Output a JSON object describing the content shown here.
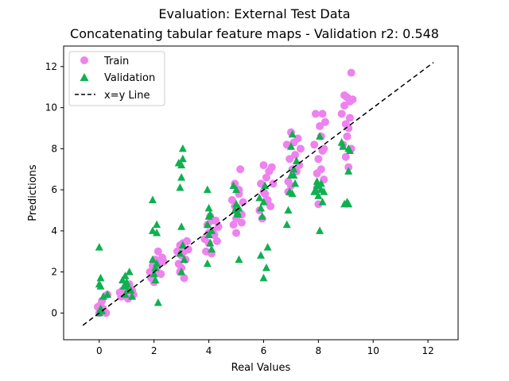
{
  "chart_data": {
    "type": "scatter",
    "title": "Evaluation: External Test Data",
    "subtitle": "Concatenating tabular feature maps - Validation r2: 0.548",
    "xlabel": "Real Values",
    "ylabel": "Predictions",
    "xlim": [
      -1.3,
      13.1
    ],
    "ylim": [
      -1.3,
      13.0
    ],
    "xticks": [
      0,
      2,
      4,
      6,
      8,
      10,
      12
    ],
    "yticks": [
      0,
      2,
      4,
      6,
      8,
      10,
      12
    ],
    "grid": false,
    "legend_position": "top-left",
    "series": [
      {
        "name": "Train",
        "marker": "circle",
        "color": "#ee82ee",
        "points": [
          [
            -0.05,
            0.3
          ],
          [
            0.0,
            0.0
          ],
          [
            0.05,
            0.4
          ],
          [
            0.1,
            0.1
          ],
          [
            0.15,
            0.2
          ],
          [
            0.25,
            0.0
          ],
          [
            0.3,
            0.9
          ],
          [
            0.1,
            0.6
          ],
          [
            0.75,
            1.0
          ],
          [
            0.8,
            0.8
          ],
          [
            0.85,
            1.1
          ],
          [
            0.95,
            0.9
          ],
          [
            1.0,
            1.2
          ],
          [
            1.05,
            0.7
          ],
          [
            1.1,
            1.4
          ],
          [
            1.2,
            1.1
          ],
          [
            1.25,
            0.9
          ],
          [
            1.85,
            2.0
          ],
          [
            1.9,
            1.7
          ],
          [
            1.95,
            2.3
          ],
          [
            2.0,
            1.5
          ],
          [
            2.05,
            2.6
          ],
          [
            2.1,
            2.2
          ],
          [
            2.15,
            3.0
          ],
          [
            2.2,
            2.4
          ],
          [
            2.25,
            1.9
          ],
          [
            2.3,
            2.7
          ],
          [
            2.35,
            2.5
          ],
          [
            2.0,
            1.9
          ],
          [
            2.1,
            2.0
          ],
          [
            2.85,
            3.0
          ],
          [
            2.9,
            2.4
          ],
          [
            2.95,
            3.3
          ],
          [
            3.0,
            2.8
          ],
          [
            3.05,
            3.4
          ],
          [
            3.1,
            1.7
          ],
          [
            3.15,
            2.6
          ],
          [
            3.2,
            3.5
          ],
          [
            3.25,
            3.1
          ],
          [
            3.0,
            2.2
          ],
          [
            3.1,
            3.0
          ],
          [
            2.95,
            2.0
          ],
          [
            3.85,
            3.6
          ],
          [
            3.9,
            3.0
          ],
          [
            3.95,
            4.3
          ],
          [
            4.0,
            3.4
          ],
          [
            4.05,
            4.7
          ],
          [
            4.1,
            2.9
          ],
          [
            4.15,
            4.0
          ],
          [
            4.2,
            3.8
          ],
          [
            4.25,
            4.5
          ],
          [
            4.3,
            3.5
          ],
          [
            4.35,
            4.2
          ],
          [
            4.0,
            3.9
          ],
          [
            4.1,
            4.5
          ],
          [
            4.85,
            5.5
          ],
          [
            4.9,
            4.3
          ],
          [
            4.95,
            6.3
          ],
          [
            5.0,
            3.9
          ],
          [
            5.05,
            5.0
          ],
          [
            5.1,
            6.0
          ],
          [
            5.15,
            7.0
          ],
          [
            5.2,
            4.8
          ],
          [
            5.25,
            5.4
          ],
          [
            5.0,
            4.6
          ],
          [
            5.1,
            5.8
          ],
          [
            5.2,
            4.4
          ],
          [
            4.95,
            5.2
          ],
          [
            5.85,
            5.0
          ],
          [
            5.9,
            6.3
          ],
          [
            5.95,
            4.6
          ],
          [
            6.0,
            7.2
          ],
          [
            6.05,
            5.8
          ],
          [
            6.1,
            6.6
          ],
          [
            6.15,
            5.5
          ],
          [
            6.2,
            6.9
          ],
          [
            6.25,
            5.2
          ],
          [
            6.3,
            7.1
          ],
          [
            6.35,
            6.3
          ],
          [
            6.0,
            5.9
          ],
          [
            6.85,
            8.2
          ],
          [
            6.9,
            6.4
          ],
          [
            6.95,
            7.5
          ],
          [
            7.0,
            8.8
          ],
          [
            7.05,
            7.0
          ],
          [
            7.1,
            8.3
          ],
          [
            7.15,
            7.7
          ],
          [
            7.2,
            6.9
          ],
          [
            7.25,
            8.5
          ],
          [
            7.3,
            7.2
          ],
          [
            7.35,
            8.0
          ],
          [
            6.9,
            5.9
          ],
          [
            7.0,
            6.2
          ],
          [
            7.85,
            8.2
          ],
          [
            7.9,
            9.7
          ],
          [
            7.95,
            6.8
          ],
          [
            8.0,
            7.5
          ],
          [
            8.05,
            9.1
          ],
          [
            8.1,
            8.6
          ],
          [
            8.15,
            7.9
          ],
          [
            8.2,
            6.5
          ],
          [
            8.25,
            9.3
          ],
          [
            8.0,
            5.3
          ],
          [
            8.1,
            7.0
          ],
          [
            8.2,
            8.0
          ],
          [
            7.95,
            6.1
          ],
          [
            8.15,
            9.7
          ],
          [
            8.85,
            9.7
          ],
          [
            8.9,
            8.2
          ],
          [
            8.95,
            10.1
          ],
          [
            9.0,
            9.2
          ],
          [
            9.05,
            10.5
          ],
          [
            9.1,
            9.0
          ],
          [
            9.15,
            10.3
          ],
          [
            9.2,
            8.0
          ],
          [
            9.25,
            10.4
          ],
          [
            9.0,
            7.6
          ],
          [
            9.1,
            7.1
          ],
          [
            9.2,
            11.7
          ],
          [
            9.05,
            8.6
          ],
          [
            8.95,
            10.6
          ],
          [
            9.15,
            9.5
          ]
        ]
      },
      {
        "name": "Validation",
        "marker": "triangle",
        "color": "#0fb050",
        "points": [
          [
            0.0,
            3.2
          ],
          [
            0.0,
            1.4
          ],
          [
            0.05,
            1.7
          ],
          [
            0.05,
            1.3
          ],
          [
            0.1,
            0.1
          ],
          [
            0.0,
            0.0
          ],
          [
            0.05,
            0.2
          ],
          [
            0.3,
            0.9
          ],
          [
            0.15,
            0.8
          ],
          [
            0.85,
            1.6
          ],
          [
            0.9,
            1.3
          ],
          [
            0.95,
            1.8
          ],
          [
            1.0,
            1.4
          ],
          [
            1.05,
            1.1
          ],
          [
            1.1,
            2.0
          ],
          [
            1.15,
            1.1
          ],
          [
            0.95,
            0.9
          ],
          [
            1.0,
            1.5
          ],
          [
            1.2,
            0.8
          ],
          [
            1.95,
            5.5
          ],
          [
            1.95,
            4.0
          ],
          [
            2.1,
            4.3
          ],
          [
            2.1,
            3.9
          ],
          [
            2.05,
            1.6
          ],
          [
            1.95,
            2.6
          ],
          [
            2.1,
            2.4
          ],
          [
            2.15,
            0.5
          ],
          [
            2.0,
            1.9
          ],
          [
            2.05,
            2.2
          ],
          [
            2.9,
            7.3
          ],
          [
            3.0,
            6.6
          ],
          [
            3.05,
            8.0
          ],
          [
            3.05,
            7.5
          ],
          [
            3.0,
            7.2
          ],
          [
            2.95,
            6.1
          ],
          [
            3.0,
            4.2
          ],
          [
            3.05,
            3.3
          ],
          [
            2.95,
            2.9
          ],
          [
            3.1,
            2.6
          ],
          [
            3.0,
            2.0
          ],
          [
            3.95,
            6.0
          ],
          [
            4.0,
            5.1
          ],
          [
            4.0,
            4.7
          ],
          [
            4.05,
            4.8
          ],
          [
            3.95,
            4.3
          ],
          [
            4.0,
            3.8
          ],
          [
            4.05,
            3.4
          ],
          [
            3.95,
            2.4
          ],
          [
            4.1,
            3.1
          ],
          [
            4.1,
            4.0
          ],
          [
            4.9,
            6.2
          ],
          [
            5.0,
            5.3
          ],
          [
            5.05,
            4.9
          ],
          [
            4.95,
            5.0
          ],
          [
            5.1,
            5.1
          ],
          [
            5.05,
            4.8
          ],
          [
            5.1,
            2.6
          ],
          [
            5.0,
            6.0
          ],
          [
            5.85,
            5.6
          ],
          [
            5.9,
            5.1
          ],
          [
            5.95,
            4.7
          ],
          [
            6.0,
            5.4
          ],
          [
            6.05,
            6.2
          ],
          [
            6.15,
            3.2
          ],
          [
            5.9,
            2.8
          ],
          [
            6.0,
            1.7
          ],
          [
            6.1,
            2.2
          ],
          [
            6.85,
            4.3
          ],
          [
            6.9,
            5.0
          ],
          [
            6.95,
            5.9
          ],
          [
            7.0,
            6.7
          ],
          [
            7.05,
            8.7
          ],
          [
            7.0,
            8.1
          ],
          [
            7.1,
            6.7
          ],
          [
            7.15,
            6.3
          ],
          [
            7.2,
            7.4
          ],
          [
            7.05,
            5.8
          ],
          [
            7.1,
            7.0
          ],
          [
            7.85,
            5.9
          ],
          [
            7.9,
            6.0
          ],
          [
            7.95,
            6.2
          ],
          [
            8.0,
            5.7
          ],
          [
            8.05,
            8.6
          ],
          [
            8.1,
            6.3
          ],
          [
            8.1,
            6.0
          ],
          [
            8.15,
            5.4
          ],
          [
            8.05,
            4.0
          ],
          [
            7.95,
            6.4
          ],
          [
            8.2,
            5.9
          ],
          [
            8.85,
            8.3
          ],
          [
            8.9,
            8.1
          ],
          [
            8.95,
            5.3
          ],
          [
            9.05,
            5.4
          ],
          [
            9.1,
            6.9
          ],
          [
            9.1,
            8.0
          ],
          [
            9.15,
            7.9
          ],
          [
            9.1,
            5.3
          ]
        ]
      },
      {
        "name": "x=y Line",
        "line": "dashed",
        "color": "#000000",
        "points": [
          [
            -0.6,
            -0.6
          ],
          [
            12.2,
            12.2
          ]
        ]
      }
    ]
  }
}
